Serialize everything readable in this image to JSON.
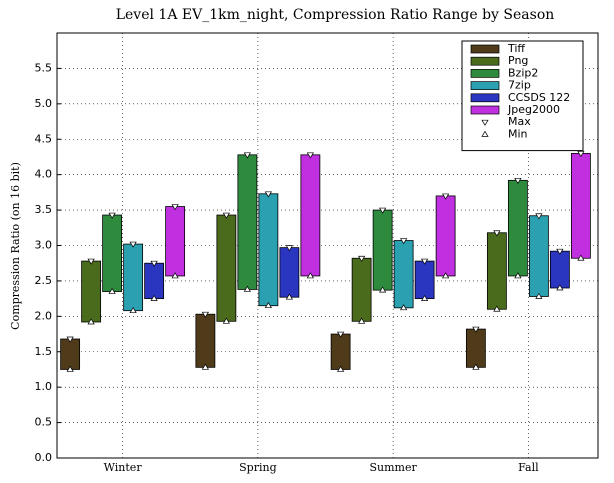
{
  "chart_data": {
    "type": "range_bar",
    "title": "Level 1A EV_1km_night, Compression Ratio Range by Season",
    "ylabel": "Compression Ratio (on 16 bit)",
    "categories": [
      "Winter",
      "Spring",
      "Summer",
      "Fall"
    ],
    "ylim": [
      0,
      6.0
    ],
    "yticks": [
      {
        "value": 0,
        "label": "0.0"
      },
      0.5,
      {
        "value": 1,
        "label": "1.0"
      },
      1.5,
      {
        "value": 2,
        "label": "2.0"
      },
      2.5,
      {
        "value": 3,
        "label": "3.0"
      },
      3.5,
      {
        "value": 4,
        "label": "4.0"
      },
      4.5,
      {
        "value": 5,
        "label": "5.0"
      },
      5.5
    ],
    "grid": true,
    "legend_position": "upper right",
    "legend_markers": [
      "Max",
      "Min"
    ],
    "series": [
      {
        "name": "Tiff",
        "color": "#4f3b1a",
        "min": [
          1.25,
          1.28,
          1.25,
          1.28
        ],
        "max": [
          1.68,
          2.03,
          1.75,
          1.82
        ]
      },
      {
        "name": "Png",
        "color": "#4a6b1c",
        "min": [
          1.92,
          1.93,
          1.93,
          2.1
        ],
        "max": [
          2.78,
          3.43,
          2.82,
          3.18
        ]
      },
      {
        "name": "Bzip2",
        "color": "#2e8b3e",
        "min": [
          2.35,
          2.38,
          2.37,
          2.57
        ],
        "max": [
          3.43,
          4.28,
          3.5,
          3.92
        ]
      },
      {
        "name": "7zip",
        "color": "#2aa0b0",
        "min": [
          2.08,
          2.15,
          2.12,
          2.28
        ],
        "max": [
          3.02,
          3.73,
          3.07,
          3.42
        ]
      },
      {
        "name": "CCSDS 122",
        "color": "#2a35c0",
        "min": [
          2.25,
          2.27,
          2.25,
          2.4
        ],
        "max": [
          2.75,
          2.97,
          2.78,
          2.92
        ]
      },
      {
        "name": "Jpeg2000",
        "color": "#c030e0",
        "min": [
          2.57,
          2.57,
          2.57,
          2.82
        ],
        "max": [
          3.55,
          4.28,
          3.7,
          4.3
        ]
      }
    ]
  }
}
